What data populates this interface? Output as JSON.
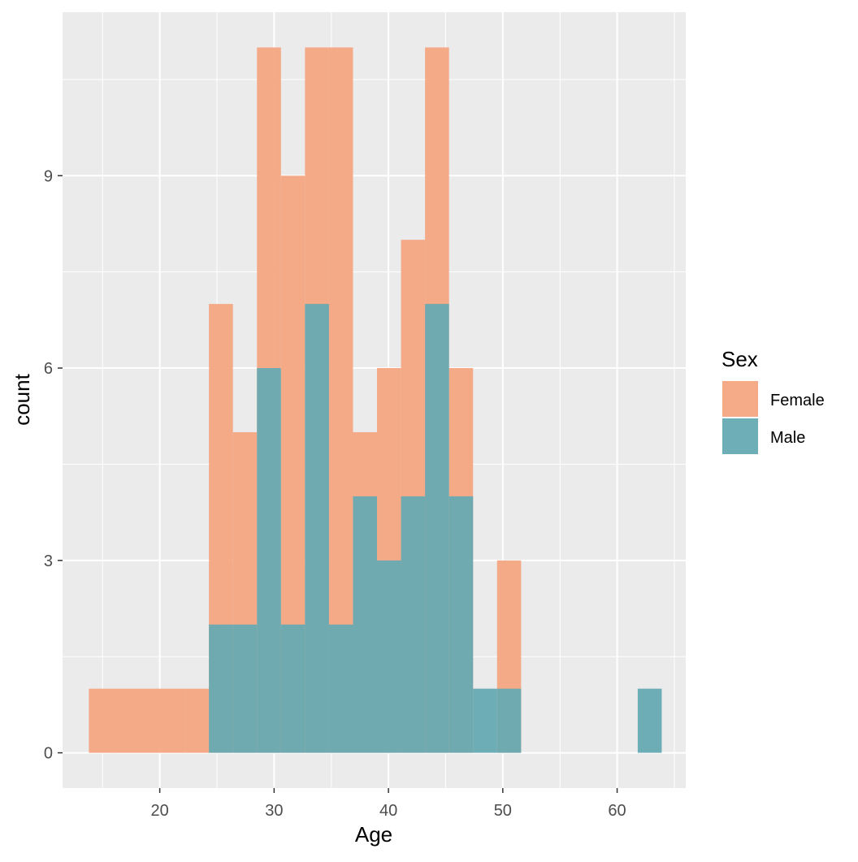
{
  "chart_data": {
    "type": "histogram",
    "xlabel": "Age",
    "ylabel": "count",
    "xlim": [
      11.5,
      66
    ],
    "ylim": [
      -0.55,
      11.55
    ],
    "x_ticks": [
      20,
      30,
      40,
      50,
      60
    ],
    "y_ticks": [
      0,
      3,
      6,
      9
    ],
    "grid": true,
    "overlay": "identity",
    "legend": {
      "title": "Sex",
      "placement": "right",
      "entries": [
        "Female",
        "Male"
      ]
    },
    "series": [
      {
        "name": "Female",
        "color": "#F4A582",
        "bins": [
          {
            "x0": 13.8,
            "x1": 15.9,
            "count": 1
          },
          {
            "x0": 15.9,
            "x1": 18.0,
            "count": 1
          },
          {
            "x0": 18.0,
            "x1": 20.1,
            "count": 1
          },
          {
            "x0": 20.1,
            "x1": 22.2,
            "count": 1
          },
          {
            "x0": 22.2,
            "x1": 24.3,
            "count": 1
          },
          {
            "x0": 24.3,
            "x1": 26.4,
            "count": 7
          },
          {
            "x0": 26.4,
            "x1": 28.5,
            "count": 5
          },
          {
            "x0": 28.5,
            "x1": 30.6,
            "count": 11
          },
          {
            "x0": 30.6,
            "x1": 32.7,
            "count": 9
          },
          {
            "x0": 32.7,
            "x1": 34.8,
            "count": 11
          },
          {
            "x0": 34.8,
            "x1": 36.9,
            "count": 11
          },
          {
            "x0": 36.9,
            "x1": 39.0,
            "count": 5
          },
          {
            "x0": 39.0,
            "x1": 41.1,
            "count": 6
          },
          {
            "x0": 41.1,
            "x1": 43.2,
            "count": 8
          },
          {
            "x0": 43.2,
            "x1": 45.3,
            "count": 11
          },
          {
            "x0": 45.3,
            "x1": 47.4,
            "count": 6
          },
          {
            "x0": 49.5,
            "x1": 51.6,
            "count": 3
          }
        ]
      },
      {
        "name": "Male",
        "color": "#66AAB2",
        "bins": [
          {
            "x0": 24.3,
            "x1": 26.4,
            "count": 2
          },
          {
            "x0": 26.4,
            "x1": 28.5,
            "count": 2
          },
          {
            "x0": 28.5,
            "x1": 30.6,
            "count": 6
          },
          {
            "x0": 30.6,
            "x1": 32.7,
            "count": 2
          },
          {
            "x0": 32.7,
            "x1": 34.8,
            "count": 7
          },
          {
            "x0": 34.8,
            "x1": 36.9,
            "count": 2
          },
          {
            "x0": 36.9,
            "x1": 39.0,
            "count": 4
          },
          {
            "x0": 39.0,
            "x1": 41.1,
            "count": 3
          },
          {
            "x0": 41.1,
            "x1": 43.2,
            "count": 4
          },
          {
            "x0": 43.2,
            "x1": 45.3,
            "count": 7
          },
          {
            "x0": 45.3,
            "x1": 47.4,
            "count": 4
          },
          {
            "x0": 47.4,
            "x1": 49.5,
            "count": 1
          },
          {
            "x0": 49.5,
            "x1": 51.6,
            "count": 1
          },
          {
            "x0": 61.8,
            "x1": 63.9,
            "count": 1
          }
        ]
      }
    ]
  }
}
